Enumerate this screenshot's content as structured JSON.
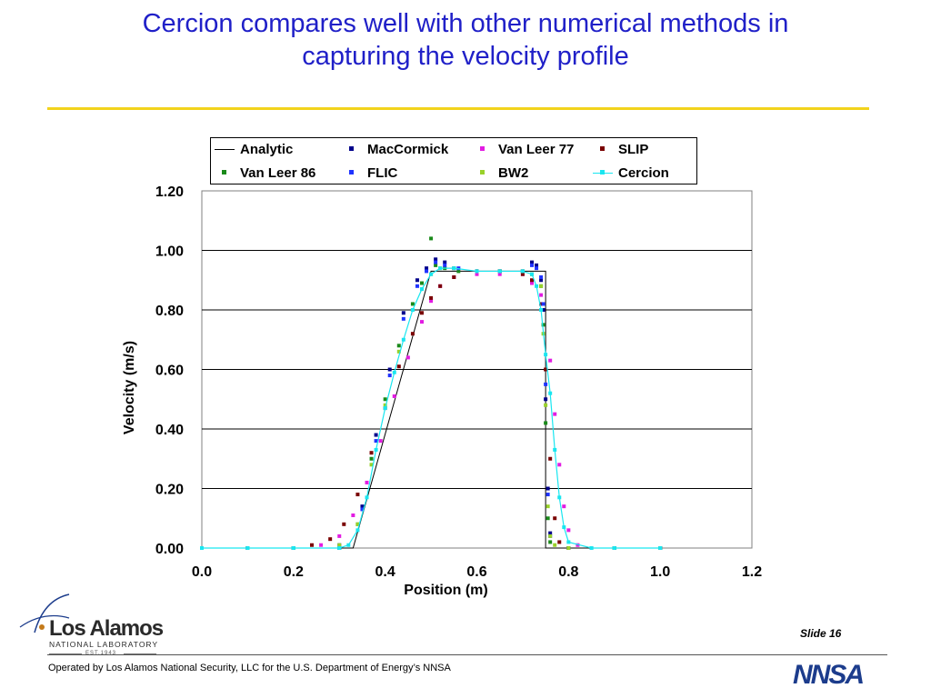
{
  "slide": {
    "title_line1": "Cercion compares well with other numerical methods in",
    "title_line2": "capturing the velocity profile",
    "slide_label": "Slide 16",
    "footer_text": "Operated by Los Alamos National Security, LLC for the U.S. Department of Energy’s NNSA",
    "logo_name": "Los Alamos",
    "logo_subtitle": "NATIONAL LABORATORY",
    "logo_est": "EST.1943",
    "nnsa_label": "NNSA",
    "title_color": "#2020c8",
    "rule_color": "#f2d31c"
  },
  "chart_data": {
    "type": "scatter",
    "xlabel": "Position (m)",
    "ylabel": "Velocity (m/s)",
    "xlim": [
      0,
      1.2
    ],
    "ylim": [
      0,
      1.2
    ],
    "xticks": [
      "0.0",
      "0.2",
      "0.4",
      "0.6",
      "0.8",
      "1.0",
      "1.2"
    ],
    "yticks": [
      "0.00",
      "0.20",
      "0.40",
      "0.60",
      "0.80",
      "1.00",
      "1.20"
    ],
    "grid": "horizontal",
    "legend_position": "top",
    "series": [
      {
        "name": "Analytic",
        "style": "line",
        "color": "#000000",
        "x": [
          0.0,
          0.33,
          0.5,
          0.75,
          0.75,
          1.0
        ],
        "y": [
          0.0,
          0.0,
          0.93,
          0.93,
          0.0,
          0.0
        ]
      },
      {
        "name": "MacCormick",
        "style": "marker",
        "color": "#00008b",
        "x": [
          0.0,
          0.1,
          0.2,
          0.3,
          0.35,
          0.38,
          0.41,
          0.44,
          0.47,
          0.49,
          0.51,
          0.53,
          0.55,
          0.6,
          0.65,
          0.7,
          0.72,
          0.73,
          0.74,
          0.745,
          0.75,
          0.755,
          0.76,
          0.8,
          0.9,
          1.0
        ],
        "y": [
          0.0,
          0.0,
          0.0,
          0.01,
          0.14,
          0.38,
          0.6,
          0.79,
          0.9,
          0.94,
          0.97,
          0.96,
          0.94,
          0.93,
          0.93,
          0.93,
          0.96,
          0.95,
          0.9,
          0.8,
          0.5,
          0.2,
          0.05,
          0.0,
          0.0,
          0.0
        ]
      },
      {
        "name": "Van Leer 77",
        "style": "marker",
        "color": "#e21ce2",
        "x": [
          0.0,
          0.1,
          0.2,
          0.26,
          0.3,
          0.33,
          0.36,
          0.39,
          0.42,
          0.45,
          0.48,
          0.5,
          0.52,
          0.55,
          0.6,
          0.65,
          0.7,
          0.72,
          0.74,
          0.76,
          0.77,
          0.78,
          0.79,
          0.8,
          0.82,
          0.85,
          0.9,
          1.0
        ],
        "y": [
          0.0,
          0.0,
          0.0,
          0.01,
          0.04,
          0.11,
          0.22,
          0.36,
          0.51,
          0.64,
          0.76,
          0.83,
          0.88,
          0.91,
          0.92,
          0.92,
          0.92,
          0.89,
          0.85,
          0.63,
          0.45,
          0.28,
          0.14,
          0.06,
          0.01,
          0.0,
          0.0,
          0.0
        ]
      },
      {
        "name": "SLIP",
        "style": "marker",
        "color": "#7a0000",
        "x": [
          0.0,
          0.1,
          0.2,
          0.24,
          0.28,
          0.31,
          0.34,
          0.37,
          0.4,
          0.43,
          0.46,
          0.48,
          0.5,
          0.52,
          0.55,
          0.6,
          0.65,
          0.7,
          0.72,
          0.74,
          0.75,
          0.76,
          0.77,
          0.78,
          0.8,
          0.85,
          0.9,
          1.0
        ],
        "y": [
          0.0,
          0.0,
          0.0,
          0.01,
          0.03,
          0.08,
          0.18,
          0.32,
          0.47,
          0.61,
          0.72,
          0.79,
          0.84,
          0.88,
          0.91,
          0.93,
          0.93,
          0.92,
          0.9,
          0.82,
          0.6,
          0.3,
          0.1,
          0.02,
          0.0,
          0.0,
          0.0,
          0.0
        ]
      },
      {
        "name": "Van Leer 86",
        "style": "marker",
        "color": "#1a8a1a",
        "x": [
          0.0,
          0.1,
          0.2,
          0.3,
          0.34,
          0.37,
          0.4,
          0.43,
          0.46,
          0.48,
          0.5,
          0.51,
          0.53,
          0.56,
          0.6,
          0.65,
          0.7,
          0.72,
          0.74,
          0.745,
          0.75,
          0.755,
          0.76,
          0.8,
          0.9,
          1.0
        ],
        "y": [
          0.0,
          0.0,
          0.0,
          0.0,
          0.08,
          0.3,
          0.5,
          0.68,
          0.82,
          0.89,
          1.04,
          0.95,
          0.94,
          0.93,
          0.93,
          0.93,
          0.93,
          0.92,
          0.88,
          0.75,
          0.42,
          0.1,
          0.02,
          0.0,
          0.0,
          0.0
        ]
      },
      {
        "name": "FLIC",
        "style": "marker",
        "color": "#1f33ff",
        "x": [
          0.0,
          0.1,
          0.2,
          0.3,
          0.35,
          0.38,
          0.41,
          0.44,
          0.47,
          0.49,
          0.51,
          0.53,
          0.56,
          0.6,
          0.65,
          0.7,
          0.72,
          0.73,
          0.74,
          0.745,
          0.75,
          0.755,
          0.76,
          0.8,
          0.9,
          1.0
        ],
        "y": [
          0.0,
          0.0,
          0.0,
          0.0,
          0.13,
          0.36,
          0.58,
          0.77,
          0.88,
          0.93,
          0.96,
          0.95,
          0.94,
          0.93,
          0.93,
          0.93,
          0.95,
          0.94,
          0.91,
          0.82,
          0.55,
          0.18,
          0.04,
          0.0,
          0.0,
          0.0
        ]
      },
      {
        "name": "BW2",
        "style": "marker",
        "color": "#99d12a",
        "x": [
          0.0,
          0.1,
          0.2,
          0.3,
          0.34,
          0.37,
          0.4,
          0.43,
          0.46,
          0.48,
          0.5,
          0.52,
          0.55,
          0.6,
          0.65,
          0.7,
          0.72,
          0.74,
          0.745,
          0.75,
          0.755,
          0.76,
          0.77,
          0.8,
          0.9,
          1.0
        ],
        "y": [
          0.0,
          0.0,
          0.0,
          0.01,
          0.08,
          0.28,
          0.48,
          0.66,
          0.8,
          0.87,
          0.92,
          0.94,
          0.94,
          0.93,
          0.93,
          0.93,
          0.92,
          0.88,
          0.72,
          0.48,
          0.14,
          0.04,
          0.01,
          0.0,
          0.0,
          0.0
        ]
      },
      {
        "name": "Cercion",
        "style": "line-marker",
        "color": "#19e6f0",
        "x": [
          0.0,
          0.1,
          0.2,
          0.3,
          0.32,
          0.34,
          0.36,
          0.38,
          0.4,
          0.42,
          0.44,
          0.46,
          0.48,
          0.5,
          0.52,
          0.55,
          0.6,
          0.65,
          0.7,
          0.72,
          0.73,
          0.74,
          0.75,
          0.76,
          0.77,
          0.78,
          0.79,
          0.8,
          0.85,
          0.9,
          1.0
        ],
        "y": [
          0.0,
          0.0,
          0.0,
          0.0,
          0.01,
          0.06,
          0.17,
          0.33,
          0.47,
          0.59,
          0.7,
          0.8,
          0.87,
          0.92,
          0.94,
          0.94,
          0.93,
          0.93,
          0.93,
          0.92,
          0.88,
          0.8,
          0.65,
          0.52,
          0.33,
          0.17,
          0.07,
          0.02,
          0.0,
          0.0,
          0.0
        ]
      }
    ]
  }
}
